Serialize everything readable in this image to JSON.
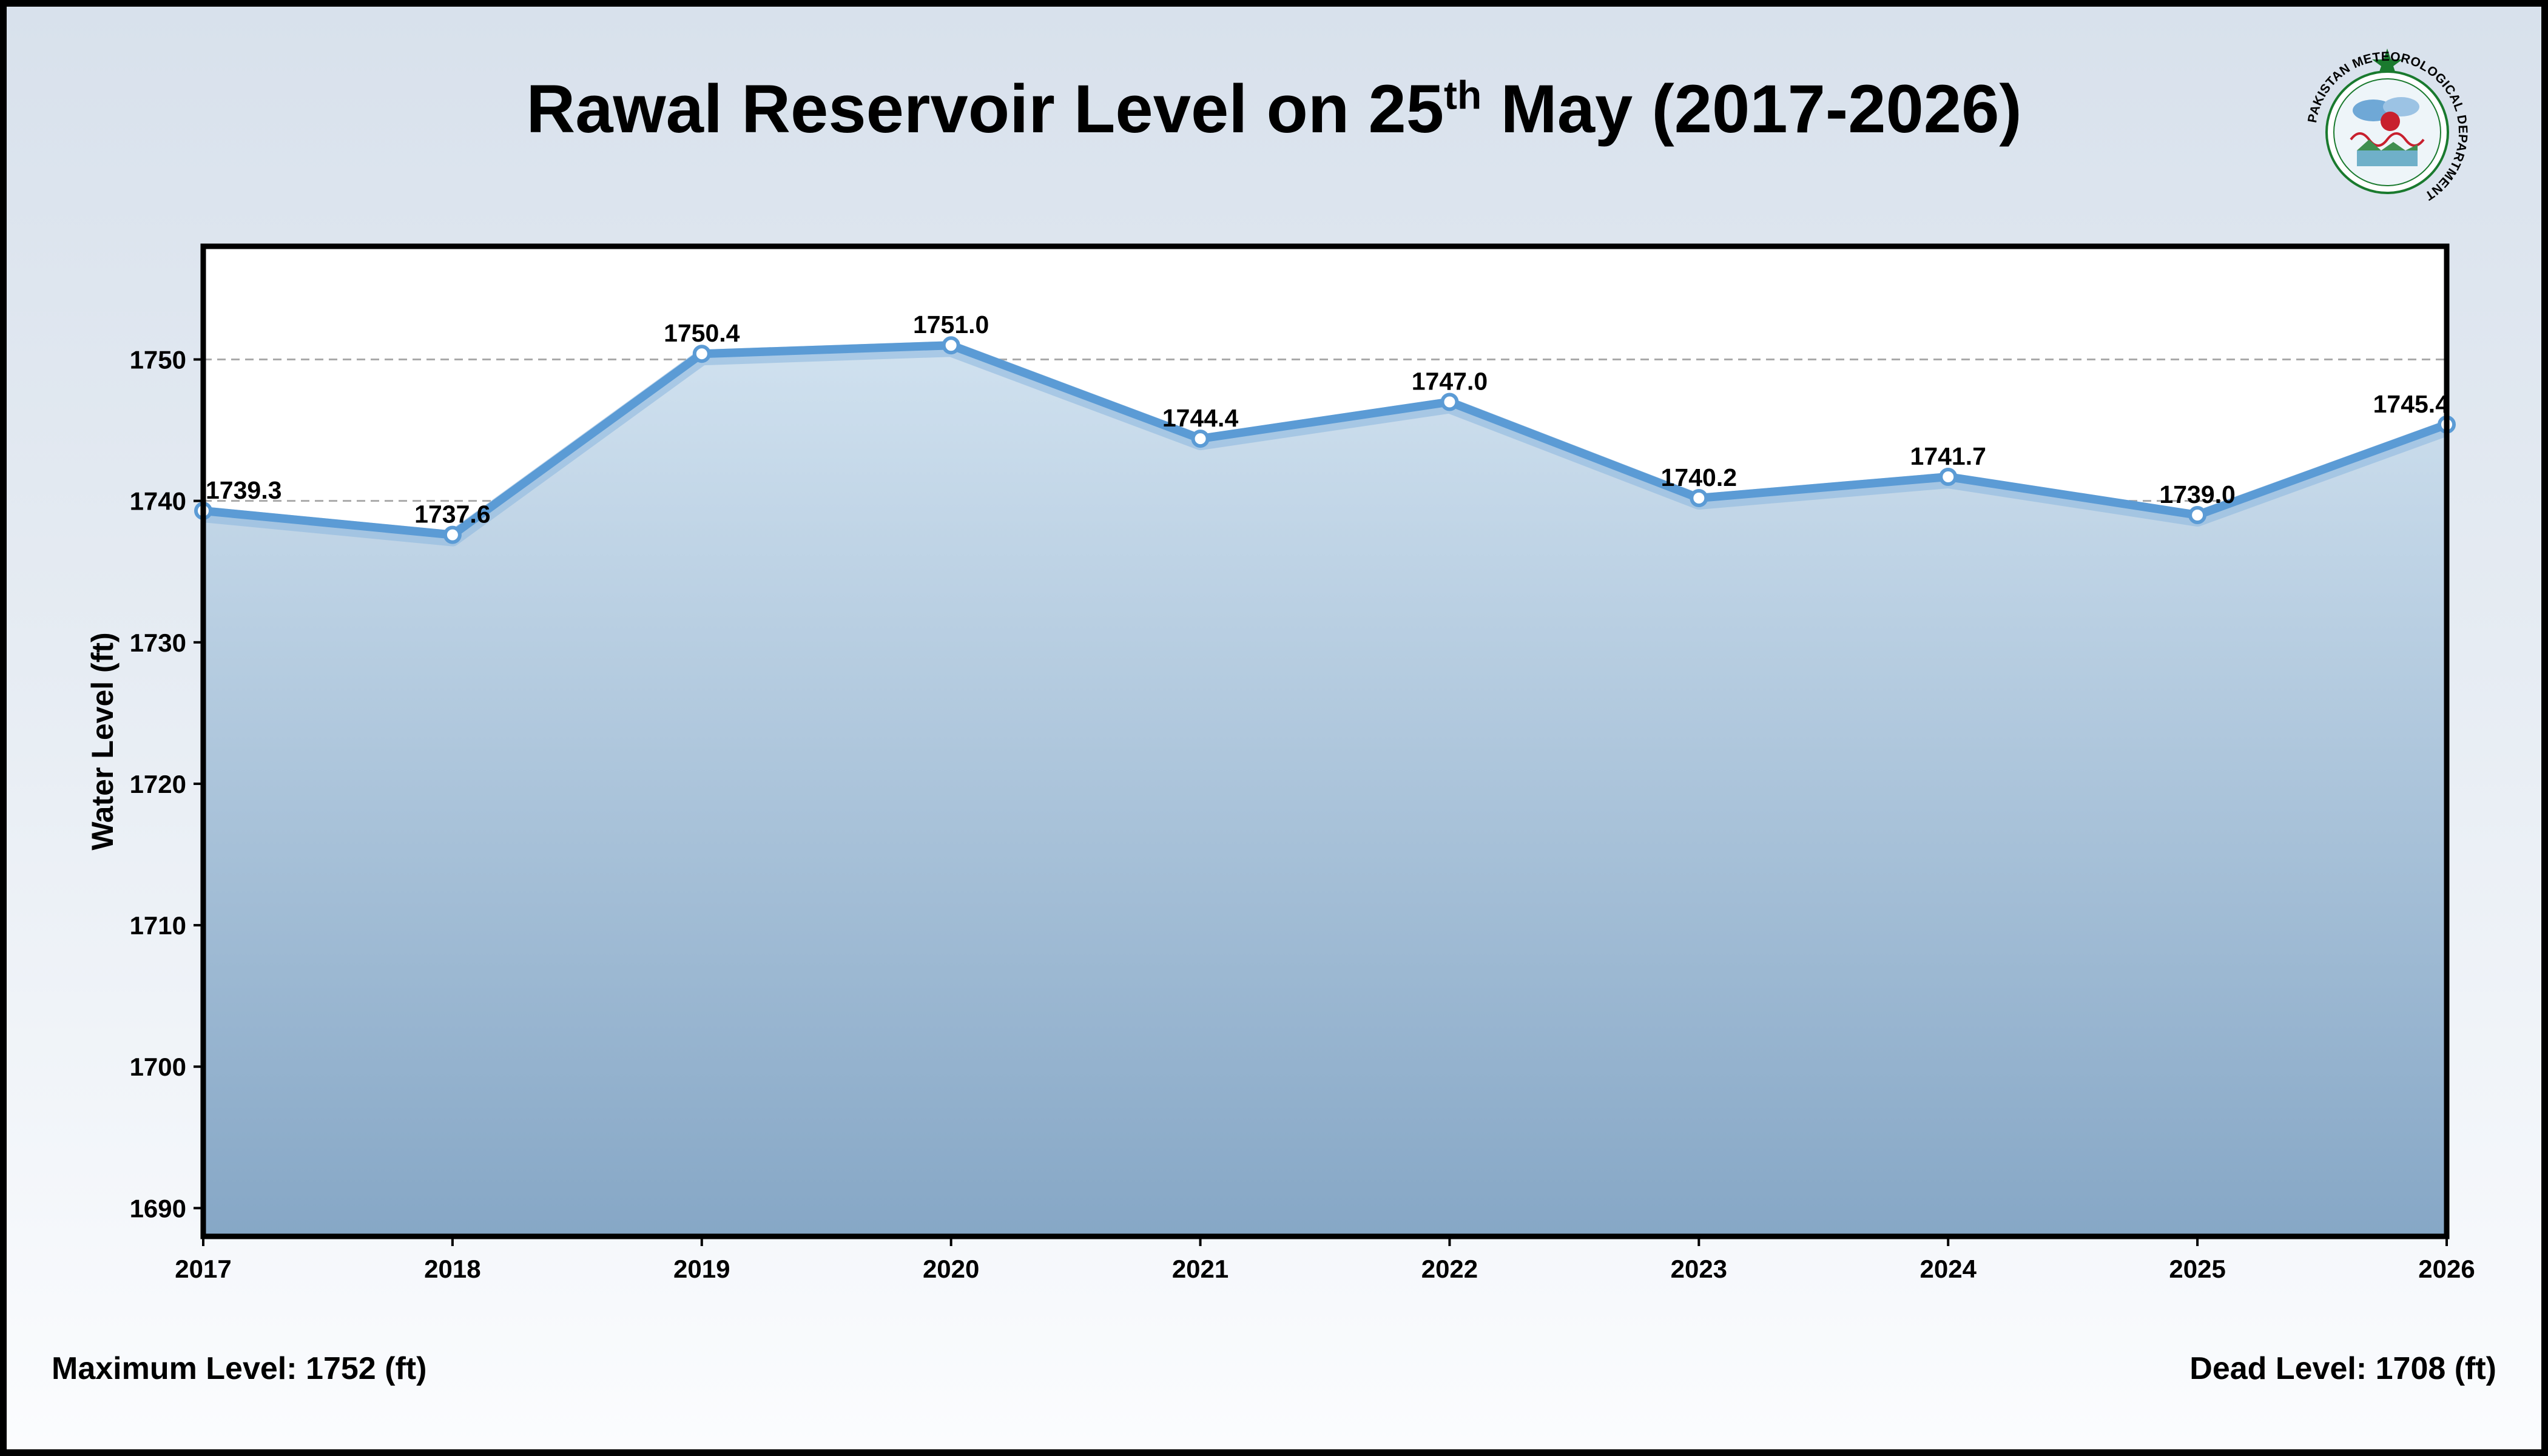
{
  "title": {
    "main": "Rawal Reservoir Level on 25",
    "superscript": "th",
    "tail": " May (2017-2026)"
  },
  "logo": {
    "name": "pakistan-meteorological-department-logo",
    "ring_text": "PAKISTAN METEOROLOGICAL DEPARTMENT"
  },
  "footer": {
    "max_level": "Maximum Level: 1752 (ft)",
    "dead_level": "Dead Level: 1708 (ft)"
  },
  "colors": {
    "line": "#5b9bd5",
    "fill_top": "#d0e1ef",
    "fill_bottom": "#86a7c6",
    "grid": "#aaaaaa"
  },
  "chart_data": {
    "type": "area",
    "title": "Rawal Reservoir Level on 25th May (2017-2026)",
    "xlabel": "",
    "ylabel": "Water Level (ft)",
    "x": [
      "2017",
      "2018",
      "2019",
      "2020",
      "2021",
      "2022",
      "2023",
      "2024",
      "2025",
      "2026"
    ],
    "values": [
      1739.3,
      1737.6,
      1750.4,
      1751.0,
      1744.4,
      1747.0,
      1740.2,
      1741.7,
      1739.0,
      1745.4
    ],
    "data_labels": [
      "1739.3",
      "1737.6",
      "1750.4",
      "1751.0",
      "1744.4",
      "1747.0",
      "1740.2",
      "1741.7",
      "1739.0",
      "1745.4"
    ],
    "yticks": [
      1690,
      1700,
      1710,
      1720,
      1730,
      1740,
      1750
    ],
    "ylim": [
      1688,
      1758
    ],
    "grid": "y-dashed",
    "legend": "none"
  }
}
